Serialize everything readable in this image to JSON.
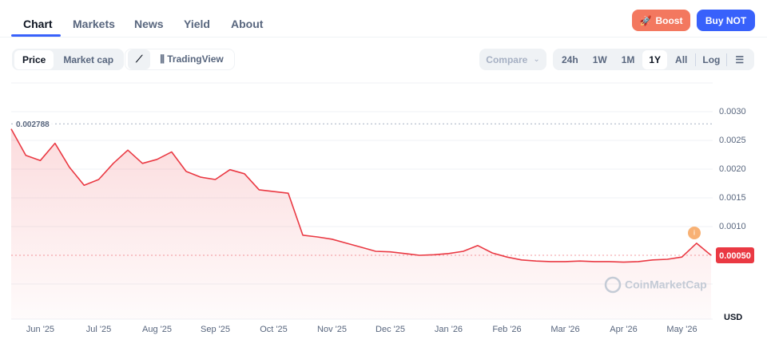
{
  "nav": {
    "tabs": [
      "Chart",
      "Markets",
      "News",
      "Yield",
      "About"
    ]
  },
  "actions": {
    "boost": "Boost",
    "buy": "Buy NOT"
  },
  "toolbar": {
    "views": [
      "Price",
      "Market cap"
    ],
    "chart_style": "TradingView",
    "compare": "Compare",
    "ranges": [
      "24h",
      "1W",
      "1M",
      "1Y",
      "All"
    ],
    "log": "Log"
  },
  "chart_data": {
    "type": "line",
    "color": "#ea3943",
    "categories": [
      null,
      null,
      "Jun '25",
      null,
      null,
      null,
      "Jul '25",
      null,
      null,
      null,
      "Aug '25",
      null,
      null,
      null,
      "Sep '25",
      null,
      null,
      null,
      "Oct '25",
      null,
      null,
      null,
      "Nov '25",
      null,
      null,
      null,
      "Dec '25",
      null,
      null,
      null,
      "Jan '26",
      null,
      null,
      null,
      "Feb '26",
      null,
      null,
      null,
      "Mar '26",
      null,
      null,
      null,
      "Apr '26",
      null,
      null,
      null,
      "May '26",
      null,
      null
    ],
    "values": [
      0.0027,
      0.00224,
      0.00215,
      0.00245,
      0.00203,
      0.00172,
      0.00182,
      0.0021,
      0.00233,
      0.0021,
      0.00217,
      0.0023,
      0.00196,
      0.00186,
      0.00182,
      0.00199,
      0.00192,
      0.00164,
      0.00161,
      0.00158,
      0.00085,
      0.00082,
      0.00078,
      0.00071,
      0.00064,
      0.00057,
      0.00056,
      0.00053,
      0.0005,
      0.00051,
      0.00053,
      0.00057,
      0.00067,
      0.00054,
      0.00047,
      0.00042,
      0.0004,
      0.00039,
      0.00039,
      0.0004,
      0.00039,
      0.00039,
      0.00038,
      0.00039,
      0.00042,
      0.00043,
      0.00047,
      0.00071,
      0.0005
    ],
    "ylim": [
      0,
      0.0035
    ],
    "yticks": [
      {
        "value": 0.001,
        "label": "0.0010"
      },
      {
        "value": 0.0015,
        "label": "0.0015"
      },
      {
        "value": 0.002,
        "label": "0.0020"
      },
      {
        "value": 0.0025,
        "label": "0.0025"
      },
      {
        "value": 0.003,
        "label": "0.0030"
      }
    ],
    "grid": true,
    "reference": 0.002788,
    "current": {
      "value": 0.0005,
      "label": "0.00050"
    },
    "y_axis_label": "USD",
    "watermark": "CoinMarketCap"
  }
}
